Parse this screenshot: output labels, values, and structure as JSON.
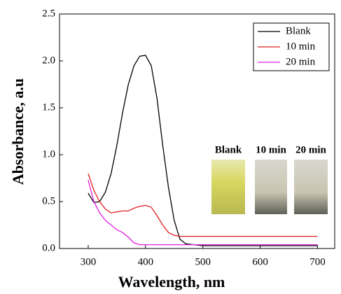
{
  "chart_data": {
    "type": "line",
    "xlabel": "Wavelength, nm",
    "ylabel": "Absorbance, a.u",
    "xlim": [
      250,
      730
    ],
    "ylim": [
      0,
      2.5
    ],
    "xticks": [
      300,
      400,
      500,
      600,
      700
    ],
    "yticks": [
      {
        "value": 0,
        "label": "0.0"
      },
      0.5,
      {
        "value": 1,
        "label": "1.0"
      },
      1.5,
      {
        "value": 2,
        "label": "2.0"
      },
      2.5
    ],
    "legend": "top-right",
    "series": [
      {
        "name": "Blank",
        "color": "#000000",
        "x": [
          300,
          310,
          320,
          330,
          340,
          350,
          360,
          370,
          380,
          390,
          400,
          410,
          420,
          430,
          440,
          450,
          460,
          470,
          500,
          600,
          700
        ],
        "values": [
          0.59,
          0.49,
          0.5,
          0.6,
          0.8,
          1.1,
          1.45,
          1.75,
          1.95,
          2.05,
          2.06,
          1.95,
          1.6,
          1.1,
          0.65,
          0.3,
          0.1,
          0.05,
          0.03,
          0.03,
          0.03
        ]
      },
      {
        "name": "10 min",
        "color": "#e02020",
        "x": [
          300,
          310,
          320,
          330,
          340,
          350,
          360,
          370,
          380,
          390,
          400,
          410,
          420,
          430,
          440,
          450,
          460,
          500,
          600,
          700
        ],
        "values": [
          0.8,
          0.62,
          0.5,
          0.42,
          0.38,
          0.39,
          0.4,
          0.4,
          0.43,
          0.45,
          0.46,
          0.44,
          0.35,
          0.25,
          0.17,
          0.14,
          0.13,
          0.13,
          0.13,
          0.13
        ]
      },
      {
        "name": "20 min",
        "color": "#e020e0",
        "x": [
          300,
          310,
          320,
          330,
          340,
          350,
          360,
          370,
          380,
          390,
          400,
          500,
          600,
          700
        ],
        "values": [
          0.73,
          0.5,
          0.38,
          0.3,
          0.25,
          0.2,
          0.17,
          0.12,
          0.06,
          0.04,
          0.04,
          0.04,
          0.04,
          0.04
        ]
      }
    ],
    "inset_labels": [
      "Blank",
      "10 min",
      "20 min"
    ]
  }
}
